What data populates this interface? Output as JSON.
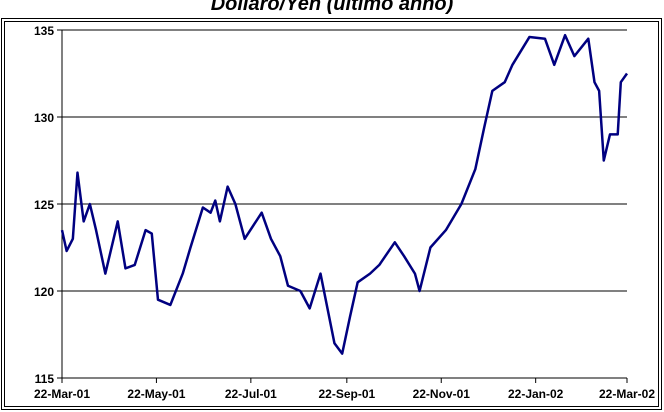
{
  "chart_data": {
    "type": "line",
    "title": "Dollaro/Yen (ultimo anno)",
    "x": [
      "2001-03-22",
      "2001-03-25",
      "2001-03-29",
      "2001-04-01",
      "2001-04-05",
      "2001-04-09",
      "2001-04-13",
      "2001-04-19",
      "2001-04-27",
      "2001-05-02",
      "2001-05-08",
      "2001-05-15",
      "2001-05-19",
      "2001-05-23",
      "2001-05-31",
      "2001-06-08",
      "2001-06-13",
      "2001-06-21",
      "2001-06-26",
      "2001-06-29",
      "2001-07-02",
      "2001-07-07",
      "2001-07-12",
      "2001-07-18",
      "2001-07-29",
      "2001-08-04",
      "2001-08-10",
      "2001-08-15",
      "2001-08-23",
      "2001-08-29",
      "2001-09-05",
      "2001-09-14",
      "2001-09-19",
      "2001-09-24",
      "2001-09-29",
      "2001-10-07",
      "2001-10-13",
      "2001-10-23",
      "2001-10-29",
      "2001-11-05",
      "2001-11-08",
      "2001-11-15",
      "2001-11-25",
      "2001-12-05",
      "2001-12-14",
      "2001-12-20",
      "2001-12-25",
      "2002-01-02",
      "2002-01-07",
      "2002-01-18",
      "2002-01-28",
      "2002-02-03",
      "2002-02-10",
      "2002-02-16",
      "2002-02-25",
      "2002-03-01",
      "2002-03-04",
      "2002-03-07",
      "2002-03-11",
      "2002-03-16",
      "2002-03-18",
      "2002-03-22"
    ],
    "series": [
      {
        "color": "#000080",
        "values": [
          123.5,
          122.3,
          123.0,
          126.8,
          124.0,
          125.0,
          123.5,
          121.0,
          124.0,
          121.3,
          121.5,
          123.5,
          123.3,
          119.5,
          119.2,
          121.0,
          122.5,
          124.8,
          124.5,
          125.2,
          124.0,
          126.0,
          125.0,
          123.0,
          124.5,
          123.0,
          122.0,
          120.3,
          120.0,
          119.0,
          121.0,
          117.0,
          116.4,
          118.5,
          120.5,
          121.0,
          121.5,
          122.8,
          122.0,
          121.0,
          120.0,
          122.5,
          123.5,
          125.0,
          127.0,
          129.5,
          131.5,
          132.0,
          133.0,
          134.6,
          134.5,
          133.0,
          134.7,
          133.5,
          134.5,
          132.0,
          131.5,
          127.5,
          129.0,
          129.0,
          132.0,
          132.5
        ]
      }
    ],
    "xlim": [
      "2001-03-22",
      "2002-03-22"
    ],
    "xticks": [
      {
        "value": "2001-03-22",
        "label": "22-Mar-01"
      },
      {
        "value": "2001-05-22",
        "label": "22-May-01"
      },
      {
        "value": "2001-07-22",
        "label": "22-Jul-01"
      },
      {
        "value": "2001-09-22",
        "label": "22-Sep-01"
      },
      {
        "value": "2001-11-22",
        "label": "22-Nov-01"
      },
      {
        "value": "2002-01-22",
        "label": "22-Jan-02"
      },
      {
        "value": "2002-03-22",
        "label": "22-Mar-02"
      }
    ],
    "ylim": [
      115,
      135
    ],
    "yticks": [
      115,
      120,
      125,
      130,
      135
    ],
    "grid": true
  }
}
